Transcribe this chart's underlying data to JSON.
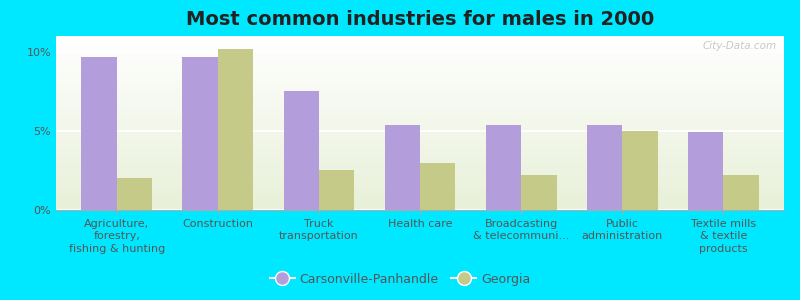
{
  "title": "Most common industries for males in 2000",
  "categories": [
    "Agriculture,\nforestry,\nfishing & hunting",
    "Construction",
    "Truck\ntransportation",
    "Health care",
    "Broadcasting\n& telecommuni...",
    "Public\nadministration",
    "Textile mills\n& textile\nproducts"
  ],
  "carsonville_values": [
    9.7,
    9.7,
    7.5,
    5.4,
    5.4,
    5.4,
    4.9
  ],
  "georgia_values": [
    2.0,
    10.2,
    2.5,
    3.0,
    2.2,
    5.0,
    2.2
  ],
  "carsonville_color": "#b39ddb",
  "georgia_color": "#c5ca89",
  "ylim": [
    0,
    11
  ],
  "yticks": [
    0,
    5,
    10
  ],
  "ytick_labels": [
    "0%",
    "5%",
    "10%"
  ],
  "bar_width": 0.35,
  "legend_labels": [
    "Carsonville-Panhandle",
    "Georgia"
  ],
  "outer_bg": "#00e8ff",
  "title_fontsize": 14,
  "tick_fontsize": 8,
  "legend_fontsize": 9
}
